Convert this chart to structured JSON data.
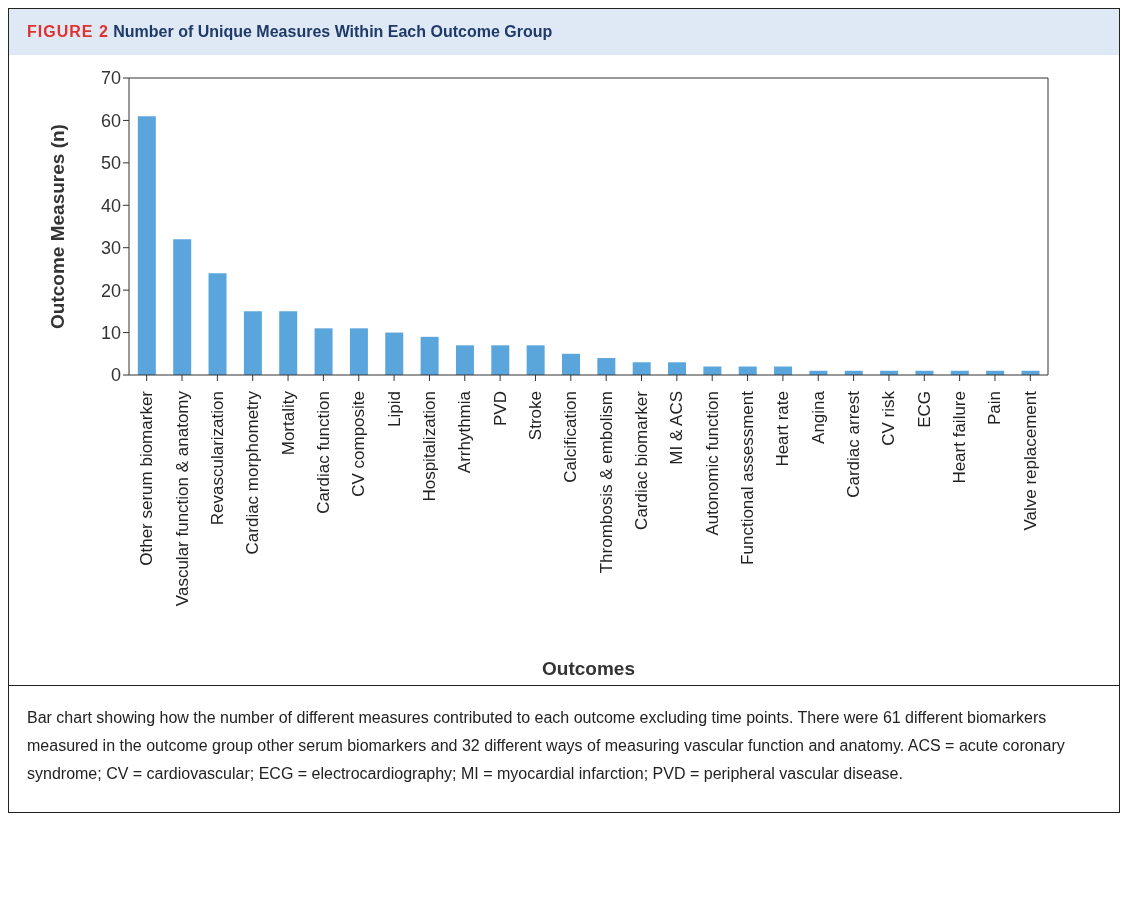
{
  "chart_data": {
    "type": "bar",
    "title": "FIGURE 2 Number of Unique Measures Within Each Outcome Group",
    "xlabel": "Outcomes",
    "ylabel": "Outcome Measures (n)",
    "categories": [
      "Other serum biomarker",
      "Vascular function & anatomy",
      "Revascularization",
      "Cardiac morphometry",
      "Mortality",
      "Cardiac function",
      "CV composite",
      "Lipid",
      "Hospitalization",
      "Arrhythmia",
      "PVD",
      "Stroke",
      "Calcification",
      "Thrombosis & embolism",
      "Cardiac biomarker",
      "MI & ACS",
      "Autonomic function",
      "Functional assessment",
      "Heart rate",
      "Angina",
      "Cardiac arrest",
      "CV risk",
      "ECG",
      "Heart failure",
      "Pain",
      "Valve replacement"
    ],
    "values": [
      61,
      32,
      24,
      15,
      15,
      11,
      11,
      10,
      9,
      7,
      7,
      7,
      5,
      4,
      3,
      3,
      2,
      2,
      2,
      1,
      1,
      1,
      1,
      1,
      1,
      1
    ],
    "color": "#5aa6dc",
    "ylim": [
      0,
      70
    ],
    "yticks": [
      0,
      10,
      20,
      30,
      40,
      50,
      60,
      70
    ],
    "grid": false,
    "legend": false,
    "annotations": [
      "Bar chart showing how the number of different measures contributed to each outcome excluding time points. There were 61 different biomarkers measured in the outcome group other serum biomarkers and 32 different ways of measuring vascular function and anatomy. ACS = acute coronary syndrome; CV = cardiovascular; ECG = electrocardiography; MI = myocardial infarction; PVD = peripheral vascular disease."
    ]
  }
}
